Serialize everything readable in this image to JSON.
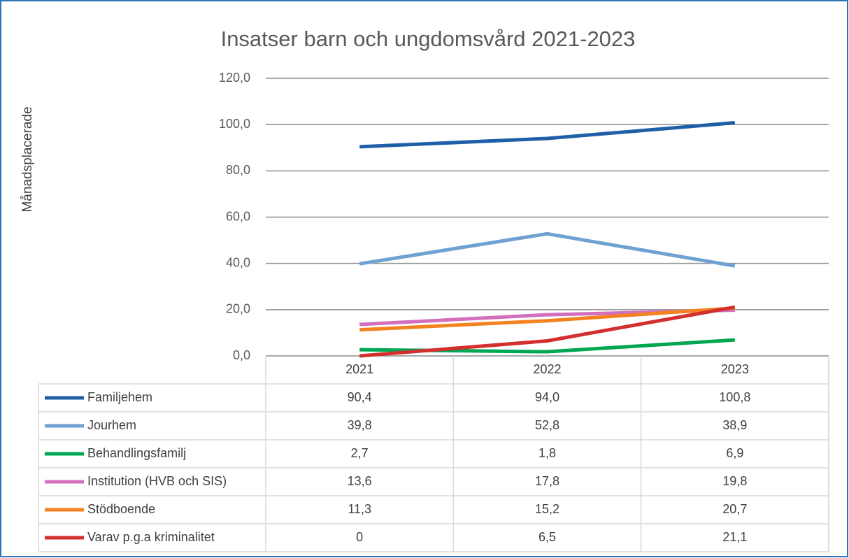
{
  "chart_data": {
    "type": "line",
    "title": "Insatser barn och ungdomsvård 2021-2023",
    "y_label": "Månadsplacerade",
    "categories": [
      "2021",
      "2022",
      "2023"
    ],
    "ylim": [
      0,
      120
    ],
    "yticks": [
      {
        "value": 0,
        "label": "0,0"
      },
      {
        "value": 20,
        "label": "20,0"
      },
      {
        "value": 40,
        "label": "40,0"
      },
      {
        "value": 60,
        "label": "60,0"
      },
      {
        "value": 80,
        "label": "80,0"
      },
      {
        "value": 100,
        "label": "100,0"
      },
      {
        "value": 120,
        "label": "120,0"
      }
    ],
    "grid": true,
    "series": [
      {
        "name": "Familjehem",
        "color": "#1f5fa8",
        "values": [
          90.4,
          94.0,
          100.8
        ],
        "value_labels": [
          "90,4",
          "94,0",
          "100,8"
        ]
      },
      {
        "name": "Jourhem",
        "color": "#6fa1d2",
        "values": [
          39.8,
          52.8,
          38.9
        ],
        "value_labels": [
          "39,8",
          "52,8",
          "38,9"
        ]
      },
      {
        "name": "Behandlingsfamilj",
        "color": "#00a651",
        "values": [
          2.7,
          1.8,
          6.9
        ],
        "value_labels": [
          "2,7",
          "1,8",
          "6,9"
        ]
      },
      {
        "name": "Institution (HVB och SIS)",
        "color": "#d36fbd",
        "values": [
          13.6,
          17.8,
          19.8
        ],
        "value_labels": [
          "13,6",
          "17,8",
          "19,8"
        ]
      },
      {
        "name": "Stödboende",
        "color": "#f58220",
        "values": [
          11.3,
          15.2,
          20.7
        ],
        "value_labels": [
          "11,3",
          "15,2",
          "20,7"
        ]
      },
      {
        "name": "Varav p.g.a kriminalitet",
        "color": "#d32f2f",
        "values": [
          0,
          6.5,
          21.1
        ],
        "value_labels": [
          "0",
          "6,5",
          "21,1"
        ]
      }
    ]
  }
}
